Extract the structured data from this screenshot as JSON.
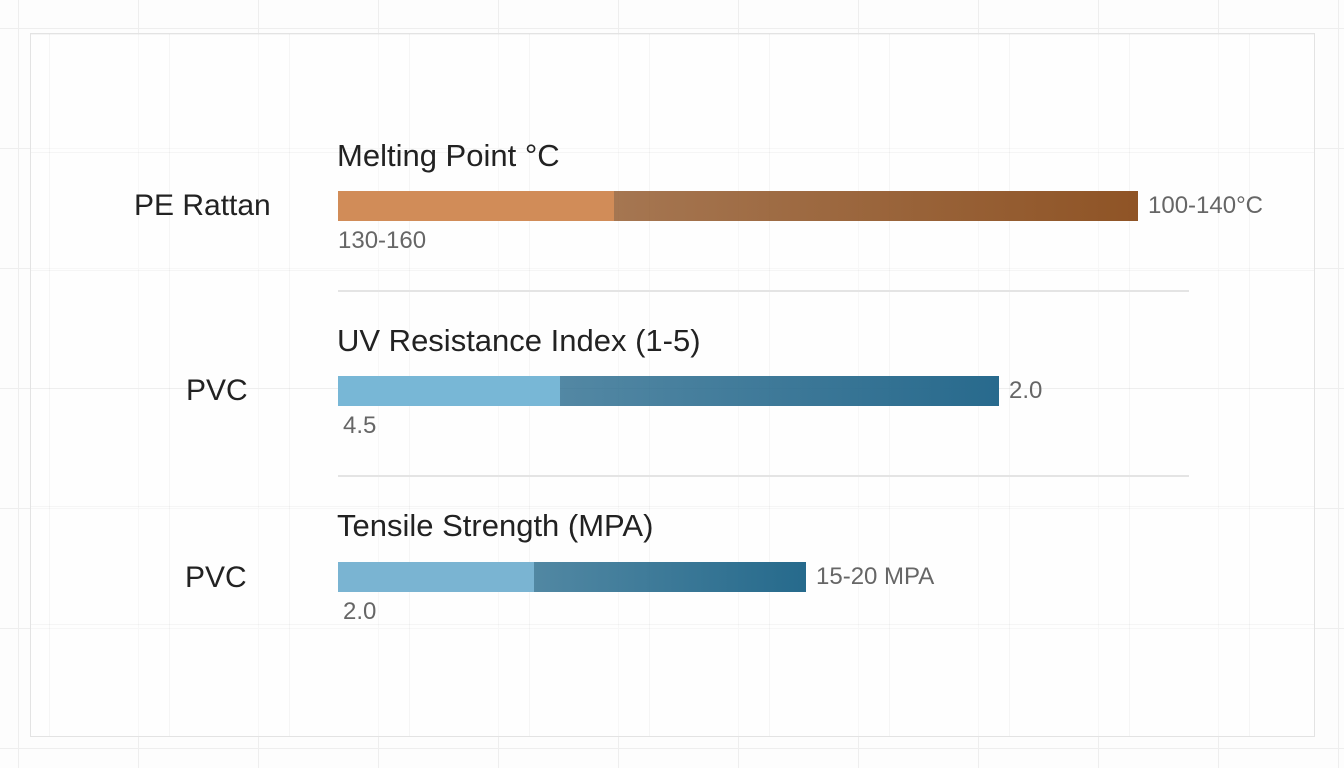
{
  "chart_data": {
    "type": "bar",
    "title": "",
    "metrics": [
      {
        "title": "Melting Point °C",
        "category": "PE Rattan",
        "value_label": "100-140°C",
        "sub_label": "130-160",
        "scale_max": 160,
        "split_value": 40,
        "total_value": 116,
        "colors": {
          "light": "#d18c58",
          "dark": "#8f5426"
        }
      },
      {
        "title": "UV Resistance Index (1-5)",
        "category": "PVC",
        "value_label": "2.0",
        "sub_label": "4.5",
        "scale_max": 5,
        "split_value": 0.94,
        "total_value": 2.8,
        "colors": {
          "light": "#78b7d6",
          "dark": "#286a8d"
        }
      },
      {
        "title": "Tensile Strength (MPA)",
        "category": "PVC",
        "value_label": "15-20 MPA",
        "sub_label": "2.0",
        "scale_max": 100,
        "split_value": 25.3,
        "total_value": 60.5,
        "colors": {
          "light": "#7ab4d2",
          "dark": "#266a8c"
        }
      }
    ]
  }
}
